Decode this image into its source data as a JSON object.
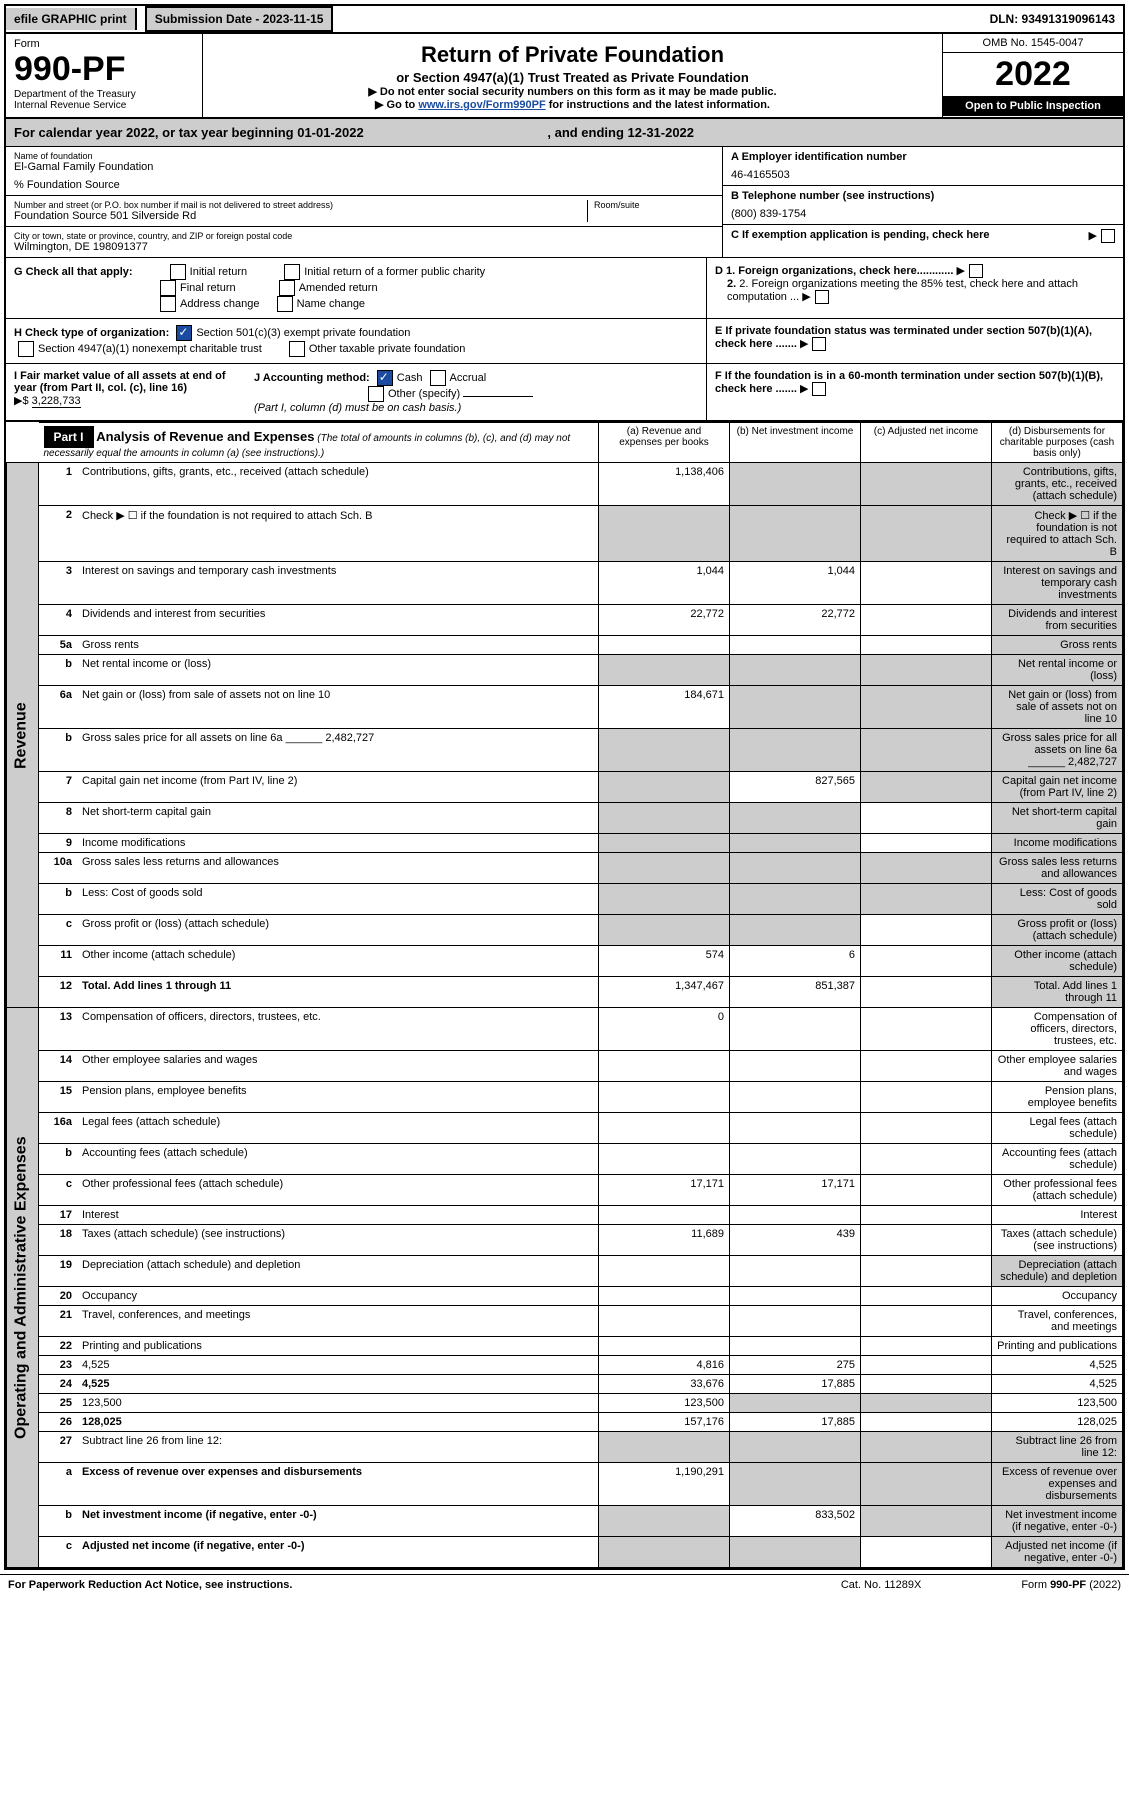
{
  "top": {
    "efile": "efile GRAPHIC print",
    "sub_date_label": "Submission Date - 2023-11-15",
    "dln": "DLN: 93491319096143"
  },
  "header": {
    "form": "Form",
    "form_num": "990-PF",
    "dept": "Department of the Treasury",
    "irs": "Internal Revenue Service",
    "title": "Return of Private Foundation",
    "subtitle": "or Section 4947(a)(1) Trust Treated as Private Foundation",
    "note1": "▶ Do not enter social security numbers on this form as it may be made public.",
    "note2_pre": "▶ Go to ",
    "note2_link": "www.irs.gov/Form990PF",
    "note2_post": " for instructions and the latest information.",
    "omb": "OMB No. 1545-0047",
    "year": "2022",
    "open": "Open to Public Inspection"
  },
  "cal": {
    "line": "For calendar year 2022, or tax year beginning 01-01-2022",
    "end": ", and ending 12-31-2022"
  },
  "info": {
    "name_label": "Name of foundation",
    "name": "El-Gamal Family Foundation",
    "source": "% Foundation Source",
    "addr_label": "Number and street (or P.O. box number if mail is not delivered to street address)",
    "addr": "Foundation Source 501 Silverside Rd",
    "room_label": "Room/suite",
    "city_label": "City or town, state or province, country, and ZIP or foreign postal code",
    "city": "Wilmington, DE  198091377",
    "a_label": "A Employer identification number",
    "a_val": "46-4165503",
    "b_label": "B Telephone number (see instructions)",
    "b_val": "(800) 839-1754",
    "c_label": "C If exemption application is pending, check here",
    "d1": "D 1. Foreign organizations, check here............",
    "d2": "2. Foreign organizations meeting the 85% test, check here and attach computation ...",
    "e": "E  If private foundation status was terminated under section 507(b)(1)(A), check here .......",
    "f": "F  If the foundation is in a 60-month termination under section 507(b)(1)(B), check here ......."
  },
  "g": {
    "label": "G Check all that apply:",
    "o1": "Initial return",
    "o2": "Final return",
    "o3": "Address change",
    "o4": "Initial return of a former public charity",
    "o5": "Amended return",
    "o6": "Name change"
  },
  "h": {
    "label": "H Check type of organization:",
    "o1": "Section 501(c)(3) exempt private foundation",
    "o2": "Section 4947(a)(1) nonexempt charitable trust",
    "o3": "Other taxable private foundation"
  },
  "i": {
    "label": "I Fair market value of all assets at end of year (from Part II, col. (c), line 16)",
    "arrow": "▶$",
    "val": "3,228,733"
  },
  "j": {
    "label": "J Accounting method:",
    "o1": "Cash",
    "o2": "Accrual",
    "o3": "Other (specify)",
    "note": "(Part I, column (d) must be on cash basis.)"
  },
  "part1": {
    "hdr": "Part I",
    "title": "Analysis of Revenue and Expenses",
    "note": "(The total of amounts in columns (b), (c), and (d) may not necessarily equal the amounts in column (a) (see instructions).)",
    "col_a": "(a) Revenue and expenses per books",
    "col_b": "(b) Net investment income",
    "col_c": "(c) Adjusted net income",
    "col_d": "(d) Disbursements for charitable purposes (cash basis only)"
  },
  "sides": {
    "rev": "Revenue",
    "exp": "Operating and Administrative Expenses"
  },
  "rows": [
    {
      "n": "1",
      "d": "Contributions, gifts, grants, etc., received (attach schedule)",
      "a": "1,138,406",
      "bs": true,
      "cs": true,
      "ds": true
    },
    {
      "n": "2",
      "d": "Check ▶ ☐ if the foundation is not required to attach Sch. B",
      "as": true,
      "bs": true,
      "cs": true,
      "ds": true
    },
    {
      "n": "3",
      "d": "Interest on savings and temporary cash investments",
      "a": "1,044",
      "b": "1,044",
      "ds": true
    },
    {
      "n": "4",
      "d": "Dividends and interest from securities",
      "a": "22,772",
      "b": "22,772",
      "ds": true
    },
    {
      "n": "5a",
      "d": "Gross rents",
      "ds": true
    },
    {
      "n": "b",
      "d": "Net rental income or (loss)",
      "as": true,
      "bs": true,
      "cs": true,
      "ds": true
    },
    {
      "n": "6a",
      "d": "Net gain or (loss) from sale of assets not on line 10",
      "a": "184,671",
      "bs": true,
      "cs": true,
      "ds": true
    },
    {
      "n": "b",
      "d": "Gross sales price for all assets on line 6a ______ 2,482,727",
      "as": true,
      "bs": true,
      "cs": true,
      "ds": true
    },
    {
      "n": "7",
      "d": "Capital gain net income (from Part IV, line 2)",
      "as": true,
      "b": "827,565",
      "cs": true,
      "ds": true
    },
    {
      "n": "8",
      "d": "Net short-term capital gain",
      "as": true,
      "bs": true,
      "ds": true
    },
    {
      "n": "9",
      "d": "Income modifications",
      "as": true,
      "bs": true,
      "ds": true
    },
    {
      "n": "10a",
      "d": "Gross sales less returns and allowances",
      "as": true,
      "bs": true,
      "cs": true,
      "ds": true
    },
    {
      "n": "b",
      "d": "Less: Cost of goods sold",
      "as": true,
      "bs": true,
      "cs": true,
      "ds": true
    },
    {
      "n": "c",
      "d": "Gross profit or (loss) (attach schedule)",
      "as": true,
      "bs": true,
      "ds": true
    },
    {
      "n": "11",
      "d": "Other income (attach schedule)",
      "a": "574",
      "b": "6",
      "ds": true
    },
    {
      "n": "12",
      "d": "Total. Add lines 1 through 11",
      "bold": true,
      "a": "1,347,467",
      "b": "851,387",
      "ds": true
    },
    {
      "n": "13",
      "d": "Compensation of officers, directors, trustees, etc.",
      "a": "0",
      "sec": "e"
    },
    {
      "n": "14",
      "d": "Other employee salaries and wages",
      "sec": "e"
    },
    {
      "n": "15",
      "d": "Pension plans, employee benefits",
      "sec": "e"
    },
    {
      "n": "16a",
      "d": "Legal fees (attach schedule)",
      "sec": "e"
    },
    {
      "n": "b",
      "d": "Accounting fees (attach schedule)",
      "sec": "e"
    },
    {
      "n": "c",
      "d": "Other professional fees (attach schedule)",
      "a": "17,171",
      "b": "17,171",
      "sec": "e"
    },
    {
      "n": "17",
      "d": "Interest",
      "sec": "e"
    },
    {
      "n": "18",
      "d": "Taxes (attach schedule) (see instructions)",
      "a": "11,689",
      "b": "439",
      "sec": "e"
    },
    {
      "n": "19",
      "d": "Depreciation (attach schedule) and depletion",
      "ds": true,
      "sec": "e"
    },
    {
      "n": "20",
      "d": "Occupancy",
      "sec": "e"
    },
    {
      "n": "21",
      "d": "Travel, conferences, and meetings",
      "sec": "e"
    },
    {
      "n": "22",
      "d": "Printing and publications",
      "sec": "e"
    },
    {
      "n": "23",
      "d": "4,525",
      "a": "4,816",
      "b": "275",
      "sec": "e"
    },
    {
      "n": "24",
      "d": "4,525",
      "bold": true,
      "a": "33,676",
      "b": "17,885",
      "sec": "e"
    },
    {
      "n": "25",
      "d": "123,500",
      "a": "123,500",
      "bs": true,
      "cs": true,
      "sec": "e"
    },
    {
      "n": "26",
      "d": "128,025",
      "bold": true,
      "a": "157,176",
      "b": "17,885",
      "sec": "e"
    },
    {
      "n": "27",
      "d": "Subtract line 26 from line 12:",
      "as": true,
      "bs": true,
      "cs": true,
      "ds": true,
      "sec": "f"
    },
    {
      "n": "a",
      "d": "Excess of revenue over expenses and disbursements",
      "bold": true,
      "a": "1,190,291",
      "bs": true,
      "cs": true,
      "ds": true,
      "sec": "f"
    },
    {
      "n": "b",
      "d": "Net investment income (if negative, enter -0-)",
      "bold": true,
      "as": true,
      "b": "833,502",
      "cs": true,
      "ds": true,
      "sec": "f"
    },
    {
      "n": "c",
      "d": "Adjusted net income (if negative, enter -0-)",
      "bold": true,
      "as": true,
      "bs": true,
      "ds": true,
      "sec": "f"
    }
  ],
  "footer": {
    "left": "For Paperwork Reduction Act Notice, see instructions.",
    "cat": "Cat. No. 11289X",
    "form": "Form 990-PF (2022)"
  }
}
